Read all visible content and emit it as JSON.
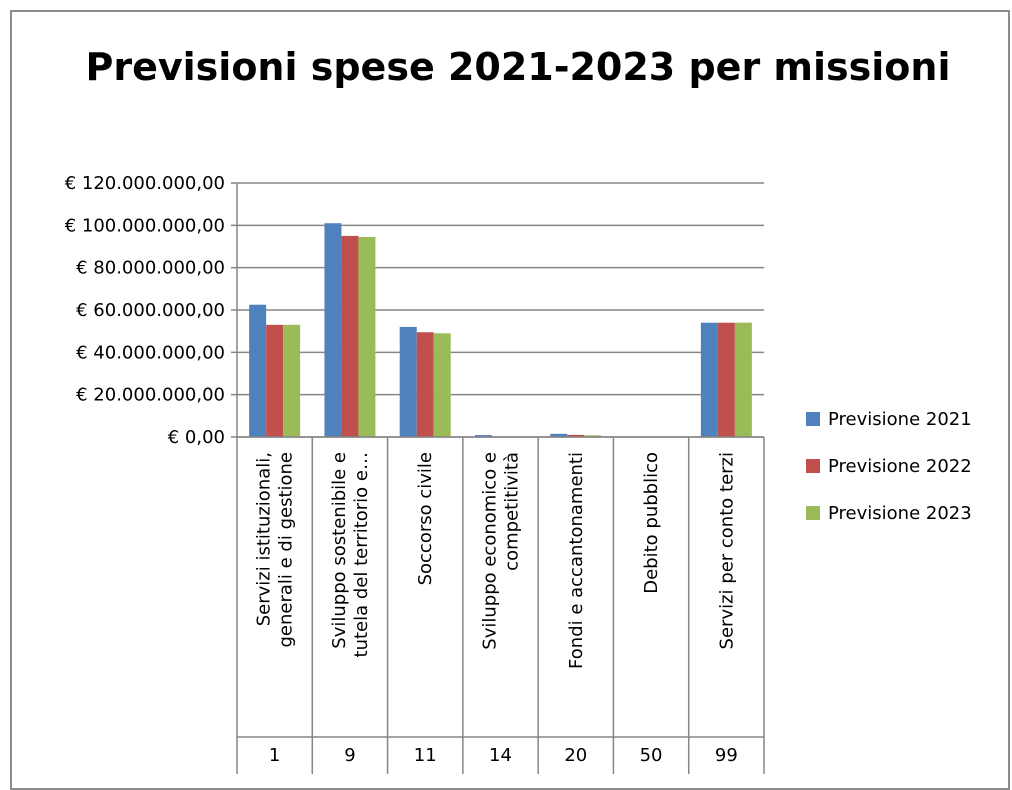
{
  "chart_data": {
    "type": "bar",
    "title": "Previsioni spese 2021-2023 per missioni",
    "categories": [
      "Servizi istituzionali,|generali e di gestione",
      "Sviluppo sostenibile e|tutela del territorio e…",
      "Soccorso civile",
      "Sviluppo economico e|competitività",
      "Fondi e accantonamenti",
      "Debito pubblico",
      "Servizi per conto terzi"
    ],
    "codes": [
      "1",
      "9",
      "11",
      "14",
      "20",
      "50",
      "99"
    ],
    "series": [
      {
        "name": "Previsione 2021",
        "color": "#4f81bd",
        "values": [
          62500000,
          101000000,
          52000000,
          900000,
          1500000,
          0,
          54000000
        ]
      },
      {
        "name": "Previsione 2022",
        "color": "#c0504d",
        "values": [
          53000000,
          95000000,
          49500000,
          0,
          1000000,
          0,
          54000000
        ]
      },
      {
        "name": "Previsione 2023",
        "color": "#9bbb59",
        "values": [
          53000000,
          94500000,
          49000000,
          0,
          800000,
          0,
          54000000
        ]
      }
    ],
    "yticks": [
      "€ 0,00",
      "€ 20.000.000,00",
      "€ 40.000.000,00",
      "€ 60.000.000,00",
      "€ 80.000.000,00",
      "€ 100.000.000,00",
      "€ 120.000.000,00"
    ],
    "ylim": [
      0,
      120000000
    ],
    "ystep": 20000000,
    "grid": true,
    "legend": "right"
  }
}
